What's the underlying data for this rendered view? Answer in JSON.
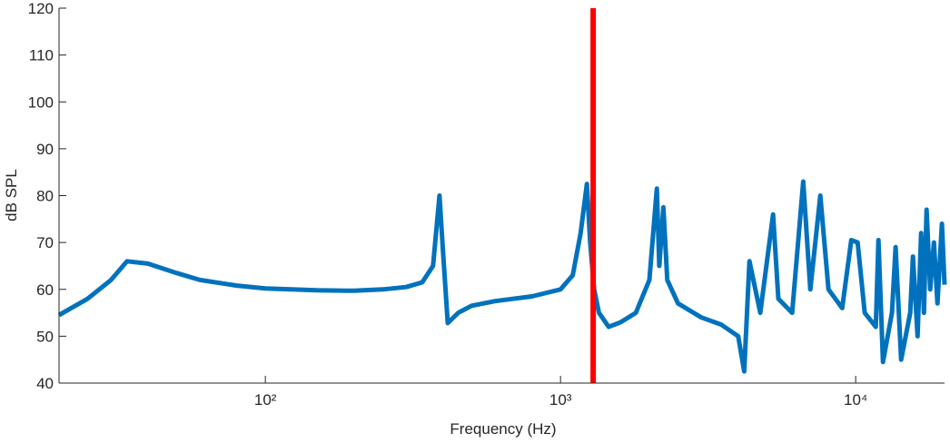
{
  "chart_data": {
    "type": "line",
    "xlabel": "Frequency (Hz)",
    "ylabel": "dB SPL",
    "xscale": "log",
    "xlim": [
      20,
      20000
    ],
    "ylim": [
      40,
      120
    ],
    "xticks": [
      {
        "value": 100,
        "label": "10²"
      },
      {
        "value": 1000,
        "label": "10³"
      },
      {
        "value": 10000,
        "label": "10⁴"
      }
    ],
    "yticks": [
      40,
      50,
      60,
      70,
      80,
      90,
      100,
      110,
      120
    ],
    "color": "#0072bd",
    "x": [
      20,
      25,
      30,
      34,
      40,
      50,
      60,
      80,
      100,
      150,
      200,
      250,
      300,
      340,
      370,
      389,
      400,
      415,
      450,
      500,
      600,
      800,
      1000,
      1100,
      1170,
      1228,
      1260,
      1300,
      1350,
      1456,
      1600,
      1800,
      2000,
      2120,
      2160,
      2230,
      2300,
      2500,
      3000,
      3500,
      4000,
      4190,
      4365,
      4750,
      5250,
      5470,
      6090,
      6640,
      7020,
      7590,
      8090,
      9000,
      9660,
      10150,
      10730,
      11700,
      11940,
      12370,
      13270,
      13650,
      14250,
      15300,
      15630,
      16200,
      16660,
      17030,
      17380,
      17880,
      18410,
      18930,
      19600,
      20000
    ],
    "values": [
      54.5,
      58,
      62,
      66,
      65.5,
      63.5,
      62,
      60.8,
      60.2,
      59.8,
      59.7,
      60,
      60.5,
      61.5,
      65,
      80,
      68,
      52.8,
      55,
      56.5,
      57.5,
      58.5,
      60,
      63,
      72,
      82.5,
      70,
      60,
      55,
      52,
      53,
      55,
      62,
      81.5,
      65,
      77.5,
      62,
      57,
      54,
      52.5,
      50,
      42.5,
      66,
      55,
      76,
      58,
      55,
      83,
      60,
      80,
      60,
      56,
      70.5,
      70,
      55,
      52,
      70.5,
      44.5,
      55,
      69,
      45,
      55,
      67,
      50,
      72,
      55,
      77,
      60,
      70,
      57,
      74,
      61
    ],
    "vline": {
      "value": 1290,
      "color": "#ff0000"
    }
  }
}
